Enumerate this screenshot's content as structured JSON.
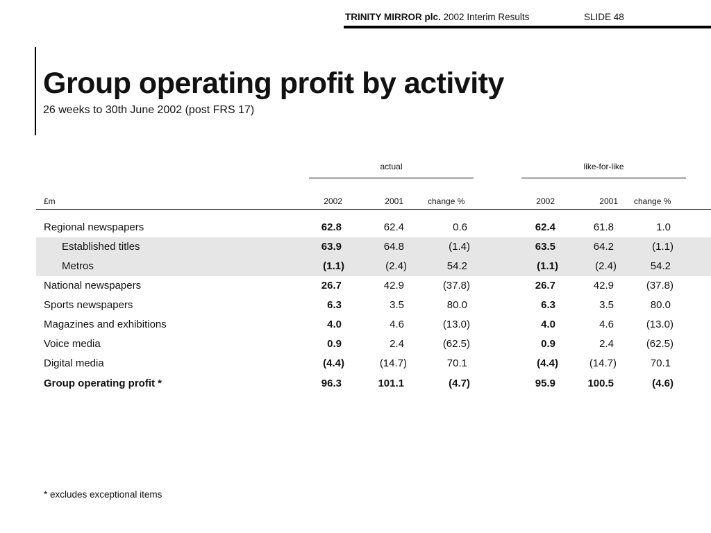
{
  "header": {
    "company": "TRINITY MIRROR plc.",
    "report": "2002 Interim Results",
    "slide": "SLIDE 48"
  },
  "title": "Group operating profit by activity",
  "subtitle": "26 weeks to 30th June 2002 (post FRS 17)",
  "table": {
    "group_actual": "actual",
    "group_lfl": "like-for-like",
    "unit_label": "£m",
    "columns": [
      "2002",
      "2001",
      "change %",
      "2002",
      "2001",
      "change %"
    ],
    "rows": [
      {
        "label": "Regional newspapers",
        "values": [
          "62.8",
          "62.4",
          "0.6",
          "62.4",
          "61.8",
          "1.0"
        ]
      },
      {
        "label": "Established titles",
        "values": [
          "63.9",
          "64.8",
          "(1.4)",
          "63.5",
          "64.2",
          "(1.1)"
        ]
      },
      {
        "label": "Metros",
        "values": [
          "(1.1)",
          "(2.4)",
          "54.2",
          "(1.1)",
          "(2.4)",
          "54.2"
        ]
      },
      {
        "label": "National newspapers",
        "values": [
          "26.7",
          "42.9",
          "(37.8)",
          "26.7",
          "42.9",
          "(37.8)"
        ]
      },
      {
        "label": "Sports newspapers",
        "values": [
          "6.3",
          "3.5",
          "80.0",
          "6.3",
          "3.5",
          "80.0"
        ]
      },
      {
        "label": "Magazines and exhibitions",
        "values": [
          "4.0",
          "4.6",
          "(13.0)",
          "4.0",
          "4.6",
          "(13.0)"
        ]
      },
      {
        "label": "Voice media",
        "values": [
          "0.9",
          "2.4",
          "(62.5)",
          "0.9",
          "2.4",
          "(62.5)"
        ]
      },
      {
        "label": "Digital media",
        "values": [
          "(4.4)",
          "(14.7)",
          "70.1",
          "(4.4)",
          "(14.7)",
          "70.1"
        ]
      },
      {
        "label": "Group operating profit *",
        "values": [
          "96.3",
          "101.1",
          "(4.7)",
          "95.9",
          "100.5",
          "(4.6)"
        ]
      }
    ]
  },
  "footnote": "* excludes exceptional items"
}
